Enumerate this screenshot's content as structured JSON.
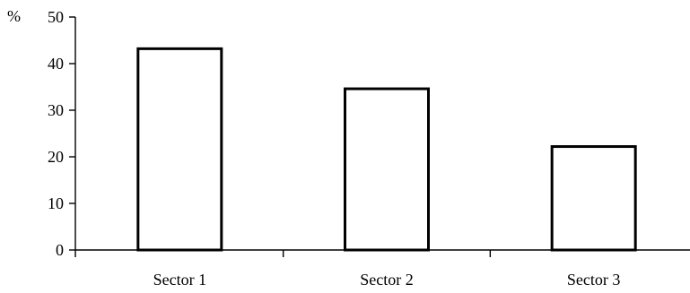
{
  "chart_data": {
    "type": "bar",
    "title": "",
    "xlabel": "",
    "ylabel": "%",
    "categories": [
      "Sector 1",
      "Sector 2",
      "Sector 3"
    ],
    "values": [
      43.2,
      34.6,
      22.2
    ],
    "ylim": [
      0,
      50
    ],
    "yticks": [
      0,
      10,
      20,
      30,
      40,
      50
    ],
    "grid": false,
    "legend": "none",
    "bar_fill": "#ffffff",
    "bar_stroke": "#000000"
  }
}
